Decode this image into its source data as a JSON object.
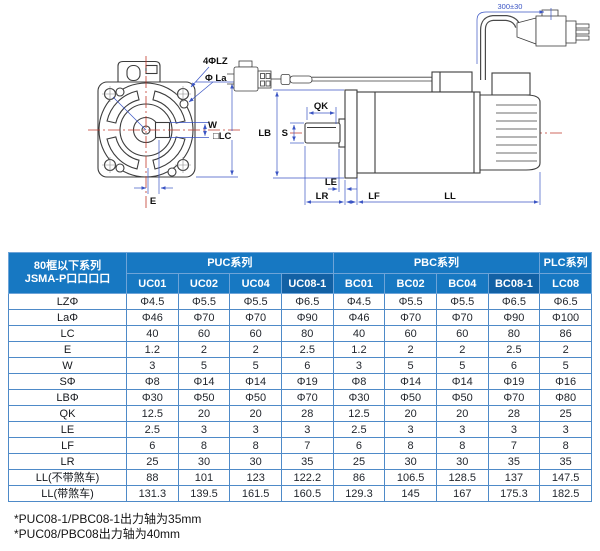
{
  "colors": {
    "header-blue": "#1778c2",
    "header-blue-dark": "#1261a5",
    "table-border": "#4e8ac8",
    "dim": "#3b55c4",
    "center": "#c0392b",
    "outline": "#3c3c3c"
  },
  "diagram": {
    "front_view": {
      "bolt_holes": "4ΦLZ",
      "flange_diameter": "Φ La",
      "keyway_width": "W",
      "flange_size": "□LC",
      "offset": "E"
    },
    "side_view": {
      "cable_length": "300±30",
      "key_length": "QK",
      "shaft_diameter": "S",
      "pilot_diameter": "LB",
      "shoulder": "LE",
      "shaft_length": "LR",
      "flange_thickness": "LF",
      "body_length": "LL"
    }
  },
  "table": {
    "corner_header_line1": "80框以下系列",
    "corner_header_line2": "JSMA-P口口口口",
    "groups": [
      {
        "label": "PUC系列",
        "span": 4
      },
      {
        "label": "PBC系列",
        "span": 4
      },
      {
        "label": "PLC系列",
        "span": 1
      }
    ],
    "models": [
      "UC01",
      "UC02",
      "UC04",
      "UC08-1",
      "BC01",
      "BC02",
      "BC04",
      "BC08-1",
      "LC08"
    ],
    "dark_model_indexes": [
      3,
      7
    ],
    "rows": [
      {
        "label": "LZΦ",
        "values": [
          "Φ4.5",
          "Φ5.5",
          "Φ5.5",
          "Φ6.5",
          "Φ4.5",
          "Φ5.5",
          "Φ5.5",
          "Φ6.5",
          "Φ6.5"
        ]
      },
      {
        "label": "LaΦ",
        "values": [
          "Φ46",
          "Φ70",
          "Φ70",
          "Φ90",
          "Φ46",
          "Φ70",
          "Φ70",
          "Φ90",
          "Φ100"
        ]
      },
      {
        "label": "LC",
        "values": [
          "40",
          "60",
          "60",
          "80",
          "40",
          "60",
          "60",
          "80",
          "86"
        ]
      },
      {
        "label": "E",
        "values": [
          "1.2",
          "2",
          "2",
          "2.5",
          "1.2",
          "2",
          "2",
          "2.5",
          "2"
        ]
      },
      {
        "label": "W",
        "values": [
          "3",
          "5",
          "5",
          "6",
          "3",
          "5",
          "5",
          "6",
          "5"
        ]
      },
      {
        "label": "SΦ",
        "values": [
          "Φ8",
          "Φ14",
          "Φ14",
          "Φ19",
          "Φ8",
          "Φ14",
          "Φ14",
          "Φ19",
          "Φ16"
        ]
      },
      {
        "label": "LBΦ",
        "values": [
          "Φ30",
          "Φ50",
          "Φ50",
          "Φ70",
          "Φ30",
          "Φ50",
          "Φ50",
          "Φ70",
          "Φ80"
        ]
      },
      {
        "label": "QK",
        "values": [
          "12.5",
          "20",
          "20",
          "28",
          "12.5",
          "20",
          "20",
          "28",
          "25"
        ]
      },
      {
        "label": "LE",
        "values": [
          "2.5",
          "3",
          "3",
          "3",
          "2.5",
          "3",
          "3",
          "3",
          "3"
        ]
      },
      {
        "label": "LF",
        "values": [
          "6",
          "8",
          "8",
          "7",
          "6",
          "8",
          "8",
          "7",
          "8"
        ]
      },
      {
        "label": "LR",
        "values": [
          "25",
          "30",
          "30",
          "35",
          "25",
          "30",
          "30",
          "35",
          "35"
        ]
      },
      {
        "label": "LL(不带煞车)",
        "values": [
          "88",
          "101",
          "123",
          "122.2",
          "86",
          "106.5",
          "128.5",
          "137",
          "147.5"
        ]
      },
      {
        "label": "LL(带煞车)",
        "values": [
          "131.3",
          "139.5",
          "161.5",
          "160.5",
          "129.3",
          "145",
          "167",
          "175.3",
          "182.5"
        ]
      }
    ]
  },
  "notes": [
    "*PUC08-1/PBC08-1出力轴为35mm",
    "*PUC08/PBC08出力轴为40mm"
  ]
}
